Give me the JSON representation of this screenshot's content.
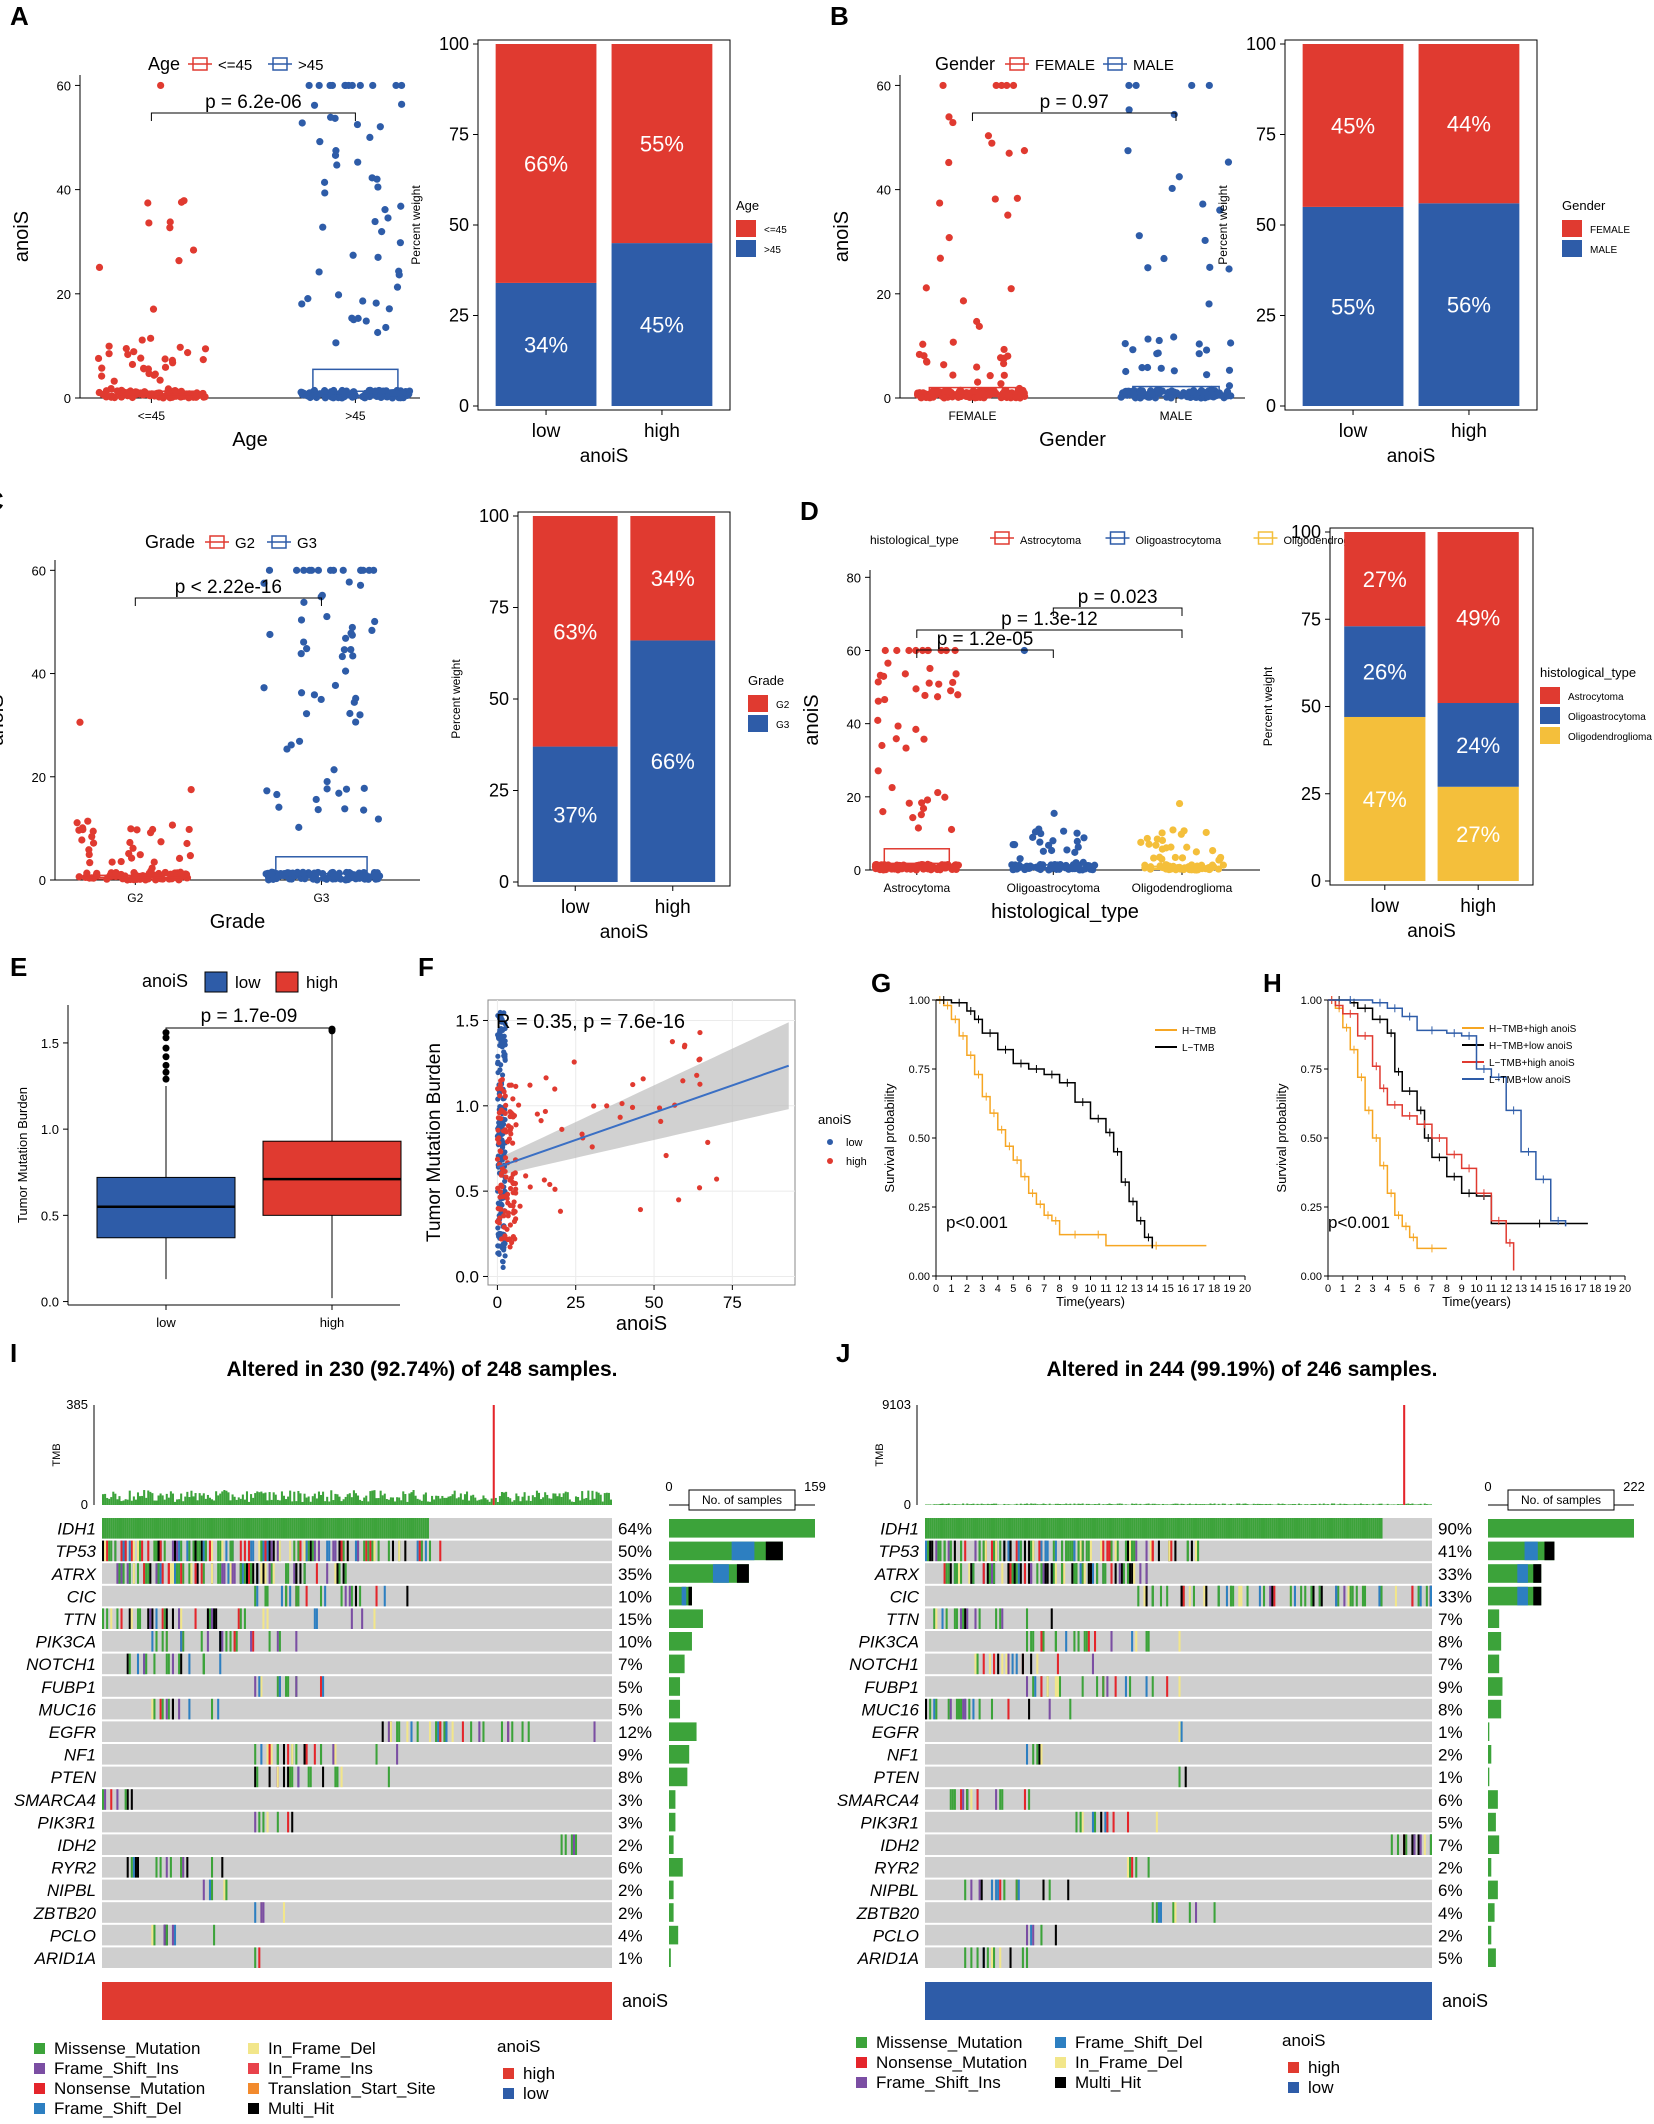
{
  "colors": {
    "red": "#e03a30",
    "blue": "#2e5ca8",
    "yellow": "#f4bf3b",
    "black": "#000000",
    "orange": "#f6a623",
    "grid": "#ebebeb",
    "bg_cell": "#cfcfcf",
    "missense": "#3ca33a",
    "nonsense": "#e4252b",
    "frame_shift_del": "#2d7fc1",
    "frame_shift_ins": "#7b4ea3",
    "in_frame_del": "#f2e68a",
    "in_frame_ins": "#e8424b",
    "translation_start": "#f28a2d",
    "multi_hit": "#000000"
  },
  "chart_data": [
    {
      "id": "A",
      "panel_label": "A",
      "type": "box_jitter",
      "legend_title": "Age",
      "groups": [
        "<=45",
        ">45"
      ],
      "xlabel": "Age",
      "ylabel": "anoiS",
      "yticks": [
        0,
        20,
        40,
        60
      ],
      "ylim": [
        0,
        62
      ],
      "pvalue": "p = 6.2e-06",
      "box_stats": [
        {
          "q1": 0.3,
          "median": 0.7,
          "q3": 1.3
        },
        {
          "q1": 0.5,
          "median": 1.3,
          "q3": 5.5
        }
      ]
    },
    {
      "id": "A2",
      "type": "stacked_bar",
      "categories": [
        "low",
        "high"
      ],
      "xlabel": "anoiS",
      "ylabel": "Percent weight",
      "yticks": [
        0,
        25,
        50,
        75,
        100
      ],
      "legend_title": "Age",
      "legend_items": [
        "<=45",
        ">45"
      ],
      "segments": [
        {
          "bottom": {
            "value": 34,
            "label": "34%"
          },
          "top": {
            "value": 66,
            "label": "66%"
          }
        },
        {
          "bottom": {
            "value": 45,
            "label": "45%"
          },
          "top": {
            "value": 55,
            "label": "55%"
          }
        }
      ]
    },
    {
      "id": "B",
      "panel_label": "B",
      "type": "box_jitter",
      "legend_title": "Gender",
      "groups": [
        "FEMALE",
        "MALE"
      ],
      "xlabel": "Gender",
      "ylabel": "anoiS",
      "yticks": [
        0,
        20,
        40,
        60
      ],
      "ylim": [
        0,
        62
      ],
      "pvalue": "p = 0.97",
      "box_stats": [
        {
          "q1": 0.3,
          "median": 0.9,
          "q3": 2.0
        },
        {
          "q1": 0.3,
          "median": 0.9,
          "q3": 2.2
        }
      ]
    },
    {
      "id": "B2",
      "type": "stacked_bar",
      "categories": [
        "low",
        "high"
      ],
      "xlabel": "anoiS",
      "ylabel": "Percent weight",
      "yticks": [
        0,
        25,
        50,
        75,
        100
      ],
      "legend_title": "Gender",
      "legend_items": [
        "FEMALE",
        "MALE"
      ],
      "segments": [
        {
          "bottom": {
            "value": 55,
            "label": "55%"
          },
          "top": {
            "value": 45,
            "label": "45%"
          }
        },
        {
          "bottom": {
            "value": 56,
            "label": "56%"
          },
          "top": {
            "value": 44,
            "label": "44%"
          }
        }
      ]
    },
    {
      "id": "C",
      "panel_label": "C",
      "type": "box_jitter",
      "legend_title": "Grade",
      "groups": [
        "G2",
        "G3"
      ],
      "xlabel": "Grade",
      "ylabel": "anoiS",
      "yticks": [
        0,
        20,
        40,
        60
      ],
      "ylim": [
        0,
        62
      ],
      "pvalue": "p < 2.22e-16",
      "box_stats": [
        {
          "q1": 0.2,
          "median": 0.5,
          "q3": 0.9
        },
        {
          "q1": 0.4,
          "median": 1.2,
          "q3": 4.5
        }
      ]
    },
    {
      "id": "C2",
      "type": "stacked_bar",
      "categories": [
        "low",
        "high"
      ],
      "xlabel": "anoiS",
      "ylabel": "Percent weight",
      "yticks": [
        0,
        25,
        50,
        75,
        100
      ],
      "legend_title": "Grade",
      "legend_items": [
        "G2",
        "G3"
      ],
      "segments": [
        {
          "bottom": {
            "value": 37,
            "label": "37%"
          },
          "top": {
            "value": 63,
            "label": "63%"
          }
        },
        {
          "bottom": {
            "value": 66,
            "label": "66%"
          },
          "top": {
            "value": 34,
            "label": "34%"
          }
        }
      ]
    },
    {
      "id": "D",
      "panel_label": "D",
      "type": "box_jitter",
      "legend_title": "histological_type",
      "groups": [
        "Astrocytoma",
        "Oligoastrocytoma",
        "Oligodendroglioma"
      ],
      "legend_labels": [
        "Astrocytoma",
        "Oligoastrocytoma",
        "Oligodendroglic"
      ],
      "xlabel": "histological_type",
      "ylabel": "anoiS",
      "yticks": [
        0,
        20,
        40,
        60,
        80
      ],
      "ylim": [
        0,
        82
      ],
      "pvalues": [
        {
          "label": "p = 1.2e-05",
          "from": 0,
          "to": 1
        },
        {
          "label": "p = 1.3e-12",
          "from": 0,
          "to": 2
        },
        {
          "label": "p = 0.023",
          "from": 1,
          "to": 2
        }
      ],
      "box_stats": [
        {
          "q1": 0.5,
          "median": 1.8,
          "q3": 5.8
        },
        {
          "q1": 0.2,
          "median": 0.6,
          "q3": 1.4
        },
        {
          "q1": 0.2,
          "median": 0.5,
          "q3": 1.0
        }
      ]
    },
    {
      "id": "D2",
      "type": "stacked_bar",
      "categories": [
        "low",
        "high"
      ],
      "xlabel": "anoiS",
      "ylabel": "Percent weight",
      "yticks": [
        0,
        25,
        50,
        75,
        100
      ],
      "legend_title": "histological_type",
      "legend_items": [
        "Astrocytoma",
        "Oligoastrocytoma",
        "Oligodendroglioma"
      ],
      "segments": [
        {
          "yellow": {
            "value": 47,
            "label": "47%"
          },
          "blue": {
            "value": 26,
            "label": "26%"
          },
          "red": {
            "value": 27,
            "label": "27%"
          }
        },
        {
          "yellow": {
            "value": 27,
            "label": "27%"
          },
          "blue": {
            "value": 24,
            "label": "24%"
          },
          "red": {
            "value": 49,
            "label": "49%"
          }
        }
      ]
    },
    {
      "id": "E",
      "panel_label": "E",
      "type": "box",
      "legend_title": "anoiS",
      "groups": [
        "low",
        "high"
      ],
      "ylabel": "Tumor Mutation Burden",
      "yticks": [
        0.0,
        0.5,
        1.0,
        1.5
      ],
      "ylim": [
        -0.02,
        1.72
      ],
      "pvalue": "p = 1.7e-09",
      "box_stats": [
        {
          "whisker_low": 0.13,
          "q1": 0.37,
          "median": 0.55,
          "q3": 0.72,
          "whisker_high": 1.25,
          "outliers": [
            1.29,
            1.33,
            1.37,
            1.42,
            1.47,
            1.53,
            1.56
          ]
        },
        {
          "whisker_low": 0.02,
          "q1": 0.5,
          "median": 0.71,
          "q3": 0.93,
          "whisker_high": 1.55,
          "outliers": [
            1.57,
            1.58
          ]
        }
      ]
    },
    {
      "id": "F",
      "panel_label": "F",
      "type": "scatter",
      "xlabel": "anoiS",
      "ylabel": "Tumor Mutation Burden",
      "xticks": [
        0,
        25,
        50,
        75
      ],
      "yticks": [
        0.0,
        0.5,
        1.0,
        1.5
      ],
      "xlim": [
        -3,
        95
      ],
      "ylim": [
        -0.05,
        1.62
      ],
      "annotation": "R = 0.35, p = 7.6e-16",
      "legend_title": "anoiS",
      "legend_items": [
        "low",
        "high"
      ],
      "fit": {
        "intercept": 0.64,
        "slope": 0.0064
      }
    },
    {
      "id": "G",
      "panel_label": "G",
      "type": "km",
      "xlabel": "Time(years)",
      "ylabel": "Survival probability",
      "xticks": [
        0,
        1,
        2,
        3,
        4,
        5,
        6,
        7,
        8,
        9,
        10,
        11,
        12,
        13,
        14,
        15,
        16,
        17,
        18,
        19,
        20
      ],
      "yticks": [
        "0.00",
        "0.25",
        "0.50",
        "0.75",
        "1.00"
      ],
      "pvalue": "p<0.001",
      "series": [
        {
          "name": "H−TMB",
          "color": "orange",
          "points": [
            [
              0,
              1
            ],
            [
              0.5,
              0.98
            ],
            [
              1,
              0.93
            ],
            [
              1.5,
              0.87
            ],
            [
              2,
              0.8
            ],
            [
              2.5,
              0.73
            ],
            [
              3,
              0.65
            ],
            [
              3.5,
              0.59
            ],
            [
              4,
              0.53
            ],
            [
              4.5,
              0.47
            ],
            [
              5,
              0.42
            ],
            [
              5.5,
              0.36
            ],
            [
              6,
              0.3
            ],
            [
              6.5,
              0.26
            ],
            [
              7,
              0.22
            ],
            [
              7.5,
              0.2
            ],
            [
              8,
              0.15
            ],
            [
              10,
              0.15
            ],
            [
              11,
              0.11
            ],
            [
              17.5,
              0.11
            ]
          ]
        },
        {
          "name": "L−TMB",
          "color": "black",
          "points": [
            [
              0,
              1
            ],
            [
              1,
              0.99
            ],
            [
              2,
              0.96
            ],
            [
              2.5,
              0.93
            ],
            [
              3,
              0.88
            ],
            [
              4,
              0.82
            ],
            [
              5,
              0.77
            ],
            [
              6,
              0.75
            ],
            [
              7,
              0.73
            ],
            [
              8,
              0.7
            ],
            [
              9,
              0.63
            ],
            [
              10,
              0.57
            ],
            [
              11,
              0.52
            ],
            [
              11.5,
              0.45
            ],
            [
              12,
              0.34
            ],
            [
              12.5,
              0.27
            ],
            [
              13,
              0.2
            ],
            [
              13.5,
              0.14
            ],
            [
              14,
              0.1
            ]
          ]
        }
      ]
    },
    {
      "id": "H",
      "panel_label": "H",
      "type": "km",
      "xlabel": "Time(years)",
      "ylabel": "Survival probability",
      "xticks": [
        0,
        1,
        2,
        3,
        4,
        5,
        6,
        7,
        8,
        9,
        10,
        11,
        12,
        13,
        14,
        15,
        16,
        17,
        18,
        19,
        20
      ],
      "yticks": [
        "0.00",
        "0.25",
        "0.50",
        "0.75",
        "1.00"
      ],
      "pvalue": "p<0.001",
      "series": [
        {
          "name": "H−TMB+high anoiS",
          "color": "orange",
          "points": [
            [
              0,
              1
            ],
            [
              0.5,
              0.97
            ],
            [
              1,
              0.9
            ],
            [
              1.5,
              0.82
            ],
            [
              2,
              0.72
            ],
            [
              2.5,
              0.6
            ],
            [
              3,
              0.5
            ],
            [
              3.5,
              0.4
            ],
            [
              4,
              0.3
            ],
            [
              4.5,
              0.22
            ],
            [
              5,
              0.18
            ],
            [
              5.5,
              0.14
            ],
            [
              6,
              0.1
            ],
            [
              8,
              0.1
            ]
          ]
        },
        {
          "name": "H−TMB+low anoiS",
          "color": "black",
          "points": [
            [
              0,
              1
            ],
            [
              1.5,
              0.99
            ],
            [
              2,
              0.97
            ],
            [
              3,
              0.93
            ],
            [
              4,
              0.88
            ],
            [
              4.5,
              0.74
            ],
            [
              5,
              0.67
            ],
            [
              6,
              0.6
            ],
            [
              6.5,
              0.5
            ],
            [
              7,
              0.43
            ],
            [
              8,
              0.36
            ],
            [
              9,
              0.3
            ],
            [
              10,
              0.29
            ],
            [
              11,
              0.19
            ],
            [
              17.5,
              0.19
            ]
          ]
        },
        {
          "name": "L−TMB+high anoiS",
          "color": "red",
          "points": [
            [
              0,
              1
            ],
            [
              0.5,
              0.98
            ],
            [
              1,
              0.95
            ],
            [
              2,
              0.87
            ],
            [
              3,
              0.76
            ],
            [
              3.5,
              0.68
            ],
            [
              4,
              0.62
            ],
            [
              5,
              0.58
            ],
            [
              6,
              0.55
            ],
            [
              7,
              0.5
            ],
            [
              8,
              0.44
            ],
            [
              9,
              0.39
            ],
            [
              10,
              0.3
            ],
            [
              11,
              0.2
            ],
            [
              12,
              0.12
            ],
            [
              12.5,
              0.02
            ]
          ]
        },
        {
          "name": "L−TMB+low anoiS",
          "color": "blue",
          "points": [
            [
              0,
              1
            ],
            [
              3,
              0.99
            ],
            [
              4,
              0.97
            ],
            [
              5,
              0.94
            ],
            [
              6,
              0.89
            ],
            [
              8,
              0.88
            ],
            [
              9,
              0.87
            ],
            [
              10,
              0.75
            ],
            [
              11,
              0.72
            ],
            [
              12,
              0.6
            ],
            [
              13,
              0.45
            ],
            [
              14,
              0.35
            ],
            [
              15,
              0.2
            ],
            [
              16,
              0.18
            ]
          ]
        }
      ]
    },
    {
      "id": "I",
      "panel_label": "I",
      "type": "oncoplot",
      "title": "Altered in 230 (92.74%) of 248 samples.",
      "tmb_label": "TMB",
      "tmb_max": "385",
      "tmb_min": "0",
      "bar_axis_min": "0",
      "bar_axis_max": "159",
      "bar_axis_label": "No. of samples",
      "annotation_label": "anoiS",
      "annotation_color": "red",
      "genes": [
        "IDH1",
        "TP53",
        "ATRX",
        "CIC",
        "TTN",
        "PIK3CA",
        "NOTCH1",
        "FUBP1",
        "MUC16",
        "EGFR",
        "NF1",
        "PTEN",
        "SMARCA4",
        "PIK3R1",
        "IDH2",
        "RYR2",
        "NIPBL",
        "ZBTB20",
        "PCLO",
        "ARID1A"
      ],
      "percents": [
        "64%",
        "50%",
        "35%",
        "10%",
        "15%",
        "10%",
        "7%",
        "5%",
        "5%",
        "12%",
        "9%",
        "8%",
        "3%",
        "3%",
        "2%",
        "6%",
        "2%",
        "2%",
        "4%",
        "1%"
      ],
      "counts": [
        159,
        124,
        87,
        25,
        37,
        25,
        17,
        12,
        12,
        30,
        22,
        20,
        7,
        7,
        5,
        15,
        5,
        5,
        10,
        2
      ]
    },
    {
      "id": "J",
      "panel_label": "J",
      "type": "oncoplot",
      "title": "Altered in 244 (99.19%) of 246 samples.",
      "tmb_label": "TMB",
      "tmb_max": "9103",
      "tmb_min": "0",
      "bar_axis_min": "0",
      "bar_axis_max": "222",
      "bar_axis_label": "No. of samples",
      "annotation_label": "anoiS",
      "annotation_color": "blue",
      "genes": [
        "IDH1",
        "TP53",
        "ATRX",
        "CIC",
        "TTN",
        "PIK3CA",
        "NOTCH1",
        "FUBP1",
        "MUC16",
        "EGFR",
        "NF1",
        "PTEN",
        "SMARCA4",
        "PIK3R1",
        "IDH2",
        "RYR2",
        "NIPBL",
        "ZBTB20",
        "PCLO",
        "ARID1A"
      ],
      "percents": [
        "90%",
        "41%",
        "33%",
        "33%",
        "7%",
        "8%",
        "7%",
        "9%",
        "8%",
        "1%",
        "2%",
        "1%",
        "6%",
        "5%",
        "7%",
        "2%",
        "6%",
        "4%",
        "2%",
        "5%"
      ],
      "counts": [
        222,
        101,
        81,
        81,
        17,
        20,
        17,
        22,
        20,
        2,
        5,
        2,
        15,
        12,
        17,
        5,
        15,
        10,
        5,
        12
      ]
    }
  ],
  "legend_I": {
    "col1": [
      "Missense_Mutation",
      "Frame_Shift_Ins",
      "Nonsense_Mutation",
      "Frame_Shift_Del"
    ],
    "col2": [
      "In_Frame_Del",
      "In_Frame_Ins",
      "Translation_Start_Site",
      "Multi_Hit"
    ],
    "anoiS_title": "anoiS",
    "anoiS_items": [
      "high",
      "low"
    ]
  },
  "legend_J": {
    "col1": [
      "Missense_Mutation",
      "Nonsense_Mutation",
      "Frame_Shift_Ins"
    ],
    "col2": [
      "Frame_Shift_Del",
      "In_Frame_Del",
      "Multi_Hit"
    ],
    "anoiS_title": "anoiS",
    "anoiS_items": [
      "high",
      "low"
    ]
  }
}
